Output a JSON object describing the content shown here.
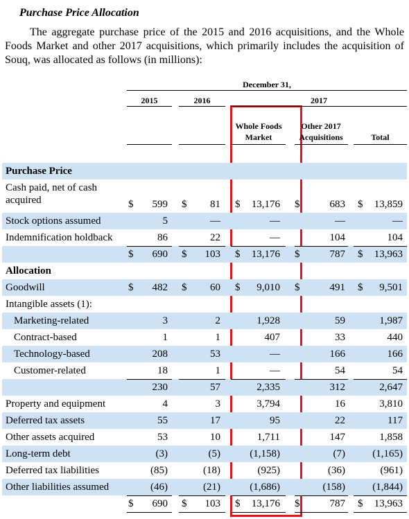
{
  "header": {
    "title": "Purchase Price Allocation",
    "intro": "The aggregate purchase price of the 2015 and 2016 acquisitions, and the Whole Foods Market and other 2017 acquisitions, which primarily includes the acquisition of Souq, was allocated as follows (in millions):"
  },
  "table": {
    "period": "December 31,",
    "year_group": "2017",
    "columns": [
      "2015",
      "2016",
      "Whole Foods Market",
      "Other 2017 Acquisitions",
      "Total"
    ],
    "currency": "$",
    "rows": [
      {
        "label": "Purchase Price",
        "bold": true
      },
      {
        "label": "Cash paid, net of cash acquired",
        "values": [
          "599",
          "81",
          "13,176",
          "683",
          "13,859"
        ],
        "dollar": true
      },
      {
        "label": "Stock options assumed",
        "values": [
          "5",
          "—",
          "—",
          "—",
          "—"
        ]
      },
      {
        "label": "Indemnification holdback",
        "values": [
          "86",
          "22",
          "—",
          "104",
          "104"
        ]
      },
      {
        "label": "",
        "values": [
          "690",
          "103",
          "13,176",
          "787",
          "13,963"
        ],
        "dollar": true,
        "rule_above": true
      },
      {
        "label": "Allocation",
        "bold": true
      },
      {
        "label": "Goodwill",
        "values": [
          "482",
          "60",
          "9,010",
          "491",
          "9,501"
        ],
        "dollar": true
      },
      {
        "label": "Intangible assets (1):"
      },
      {
        "label": "Marketing-related",
        "values": [
          "3",
          "2",
          "1,928",
          "59",
          "1,987"
        ],
        "indent": true
      },
      {
        "label": "Contract-based",
        "values": [
          "1",
          "1",
          "407",
          "33",
          "440"
        ],
        "indent": true
      },
      {
        "label": "Technology-based",
        "values": [
          "208",
          "53",
          "—",
          "166",
          "166"
        ],
        "indent": true
      },
      {
        "label": "Customer-related",
        "values": [
          "18",
          "1",
          "—",
          "54",
          "54"
        ],
        "indent": true
      },
      {
        "label": "",
        "values": [
          "230",
          "57",
          "2,335",
          "312",
          "2,647"
        ],
        "rule_above": true
      },
      {
        "label": "Property and equipment",
        "values": [
          "4",
          "3",
          "3,794",
          "16",
          "3,810"
        ]
      },
      {
        "label": "Deferred tax assets",
        "values": [
          "55",
          "17",
          "95",
          "22",
          "117"
        ]
      },
      {
        "label": "Other assets acquired",
        "values": [
          "53",
          "10",
          "1,711",
          "147",
          "1,858"
        ]
      },
      {
        "label": "Long-term debt",
        "values": [
          "(3)",
          "(5)",
          "(1,158)",
          "(7)",
          "(1,165)"
        ]
      },
      {
        "label": "Deferred tax liabilities",
        "values": [
          "(85)",
          "(18)",
          "(925)",
          "(36)",
          "(961)"
        ]
      },
      {
        "label": "Other liabilities assumed",
        "values": [
          "(46)",
          "(21)",
          "(1,686)",
          "(158)",
          "(1,844)"
        ]
      },
      {
        "label": "",
        "values": [
          "690",
          "103",
          "13,176",
          "787",
          "13,963"
        ],
        "dollar": true,
        "rule_above": true,
        "rule_below": true
      }
    ]
  }
}
